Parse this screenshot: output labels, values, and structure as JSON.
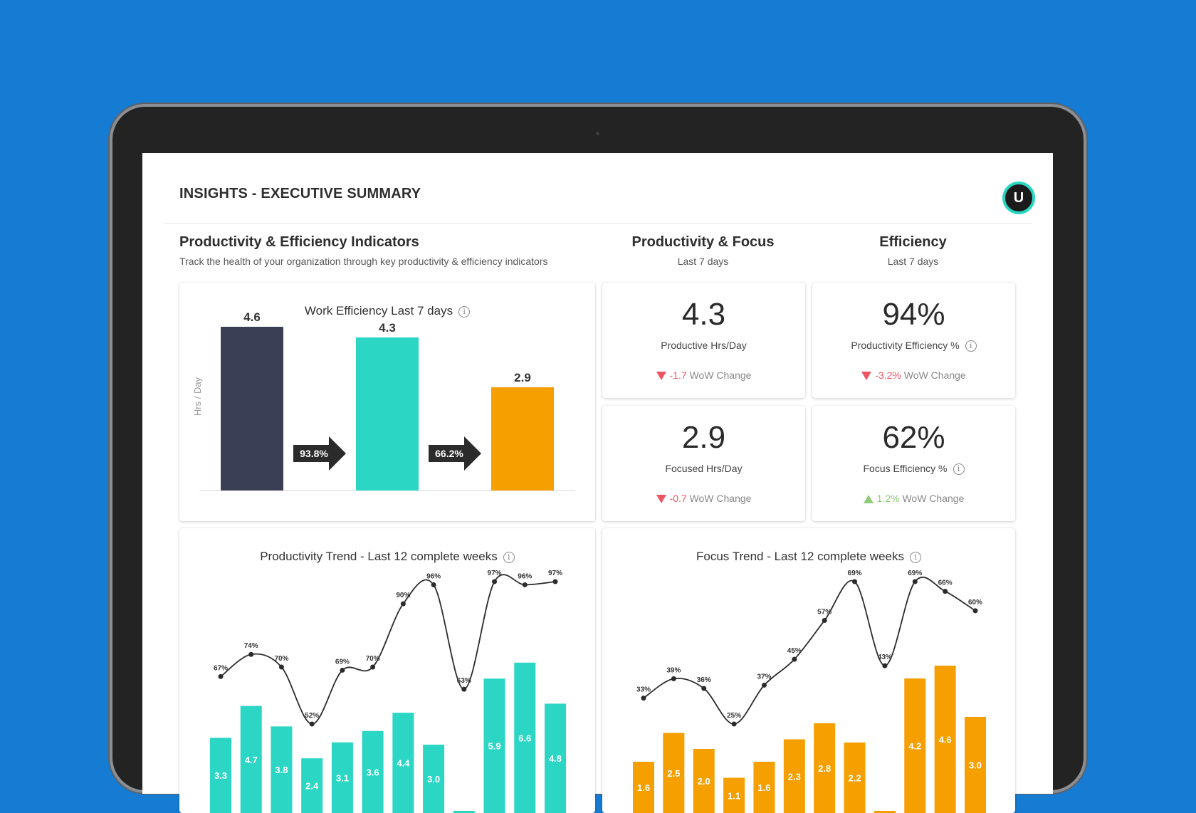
{
  "header": {
    "title": "INSIGHTS - EXECUTIVE SUMMARY",
    "avatar_initial": "U"
  },
  "indicators": {
    "title": "Productivity & Efficiency Indicators",
    "subtitle": "Track the health of your organization through key productivity & efficiency indicators"
  },
  "productivity_focus": {
    "title": "Productivity & Focus",
    "period": "Last 7 days"
  },
  "efficiency": {
    "title": "Efficiency",
    "period": "Last 7 days"
  },
  "kpis": {
    "productive": {
      "value": "4.3",
      "label": "Productive Hrs/Day",
      "change": "-1.7",
      "change_label": "WoW Change"
    },
    "productivity_eff": {
      "value": "94%",
      "label": "Productivity Efficiency %",
      "change": "-3.2%",
      "change_label": "WoW Change"
    },
    "focused": {
      "value": "2.9",
      "label": "Focused Hrs/Day",
      "change": "-0.7",
      "change_label": "WoW Change"
    },
    "focus_eff": {
      "value": "62%",
      "label": "Focus Efficiency %",
      "change": "1.2%",
      "change_label": "WoW Change"
    }
  },
  "colors": {
    "navy": "#3a3f56",
    "teal": "#2bd6c4",
    "orange": "#f59f00",
    "down": "#ee5563",
    "up": "#8ccb7a",
    "background": "#167bd3"
  },
  "chart_data": [
    {
      "type": "bar",
      "title": "Work Efficiency Last 7 days",
      "ylabel": "Hrs / Day",
      "values": [
        4.6,
        4.3,
        2.9
      ],
      "value_labels": [
        "4.6",
        "4.3",
        "2.9"
      ],
      "arrows": [
        "93.8%",
        "66.2%"
      ]
    },
    {
      "type": "bar",
      "title": "Productivity Trend - Last 12 complete weeks",
      "bars": [
        3.3,
        4.7,
        3.8,
        2.4,
        3.1,
        3.6,
        4.4,
        3.0,
        null,
        5.9,
        6.6,
        4.8
      ],
      "bar_labels": [
        "3.3",
        "4.7",
        "3.8",
        "2.4",
        "3.1",
        "3.6",
        "4.4",
        "3.0",
        "",
        "5.9",
        "6.6",
        "4.8"
      ],
      "line": [
        67,
        74,
        70,
        52,
        69,
        70,
        90,
        96,
        63,
        97,
        96,
        97
      ],
      "line_labels": [
        "67%",
        "74%",
        "70%",
        "52%",
        "69%",
        "70%",
        "90%",
        "96%",
        "63%",
        "97%",
        "96%",
        "97%"
      ]
    },
    {
      "type": "bar",
      "title": "Focus Trend - Last 12 complete weeks",
      "bars": [
        1.6,
        2.5,
        2.0,
        1.1,
        1.6,
        2.3,
        2.8,
        2.2,
        null,
        4.2,
        4.6,
        3.0
      ],
      "bar_labels": [
        "1.6",
        "2.5",
        "2.0",
        "1.1",
        "1.6",
        "2.3",
        "2.8",
        "2.2",
        "",
        "4.2",
        "4.6",
        "3.0"
      ],
      "line": [
        33,
        39,
        36,
        25,
        37,
        45,
        57,
        69,
        43,
        69,
        66,
        60
      ],
      "line_labels": [
        "33%",
        "39%",
        "36%",
        "25%",
        "37%",
        "45%",
        "57%",
        "69%",
        "43%",
        "69%",
        "66%",
        "60%"
      ]
    }
  ]
}
